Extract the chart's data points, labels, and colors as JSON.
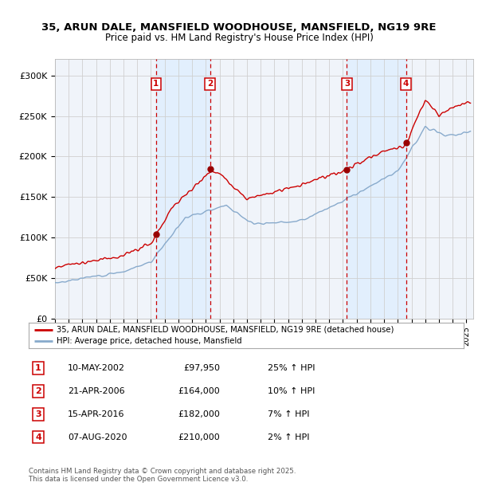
{
  "title_line1": "35, ARUN DALE, MANSFIELD WOODHOUSE, MANSFIELD, NG19 9RE",
  "title_line2": "Price paid vs. HM Land Registry's House Price Index (HPI)",
  "ylim": [
    0,
    320000
  ],
  "yticks": [
    0,
    50000,
    100000,
    150000,
    200000,
    250000,
    300000
  ],
  "ytick_labels": [
    "£0",
    "£50K",
    "£100K",
    "£150K",
    "£200K",
    "£250K",
    "£300K"
  ],
  "background_color": "#ffffff",
  "grid_color": "#d0d0d0",
  "transactions": [
    {
      "num": 1,
      "date_label": "10-MAY-2002",
      "price": 97950,
      "pct": "25%",
      "year": 2002.37
    },
    {
      "num": 2,
      "date_label": "21-APR-2006",
      "price": 164000,
      "pct": "10%",
      "year": 2006.31
    },
    {
      "num": 3,
      "date_label": "15-APR-2016",
      "price": 182000,
      "pct": "7%",
      "year": 2016.29
    },
    {
      "num": 4,
      "date_label": "07-AUG-2020",
      "price": 210000,
      "pct": "2%",
      "year": 2020.6
    }
  ],
  "legend_line1": "35, ARUN DALE, MANSFIELD WOODHOUSE, MANSFIELD, NG19 9RE (detached house)",
  "legend_line2": "HPI: Average price, detached house, Mansfield",
  "footer": "Contains HM Land Registry data © Crown copyright and database right 2025.\nThis data is licensed under the Open Government Licence v3.0.",
  "line_color_red": "#cc0000",
  "line_color_blue": "#88aacc",
  "shade_color": "#ddeeff",
  "xmin": 1995,
  "xmax": 2025.5
}
